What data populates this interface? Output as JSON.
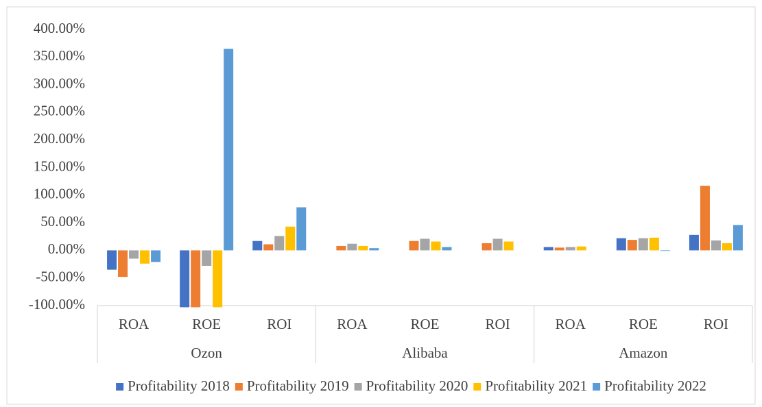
{
  "chart_data": {
    "type": "bar",
    "categories": [
      "ROA",
      "ROE",
      "ROI",
      "ROA",
      "ROE",
      "ROI",
      "ROA",
      "ROE",
      "ROI"
    ],
    "groups": [
      "Ozon",
      "Alibaba",
      "Amazon"
    ],
    "series": [
      {
        "name": "Profitability 2018",
        "color": "#4472c4",
        "values": [
          -35,
          -103,
          17,
          0,
          0,
          0,
          6,
          22,
          28
        ]
      },
      {
        "name": "Profitability 2019",
        "color": "#ed7d31",
        "values": [
          -48,
          -103,
          11,
          8,
          17,
          13,
          5,
          19,
          117
        ]
      },
      {
        "name": "Profitability 2020",
        "color": "#a5a5a5",
        "values": [
          -15,
          -28,
          26,
          12,
          21,
          21,
          6,
          22,
          18
        ]
      },
      {
        "name": "Profitability 2021",
        "color": "#ffc000",
        "values": [
          -24,
          -103,
          43,
          8,
          16,
          16,
          7,
          23,
          13
        ]
      },
      {
        "name": "Profitability 2022",
        "color": "#5b9bd5",
        "values": [
          -21,
          365,
          78,
          4,
          6,
          0,
          0,
          -1,
          46
        ]
      }
    ],
    "ylim": [
      -100,
      400
    ],
    "yticks": [
      {
        "value": -100,
        "label": "-100.00%"
      },
      {
        "value": -50,
        "label": "-50.00%"
      },
      {
        "value": 0,
        "label": "0.00%"
      },
      {
        "value": 50,
        "label": "50.00%"
      },
      {
        "value": 100,
        "label": "100.00%"
      },
      {
        "value": 150,
        "label": "150.00%"
      },
      {
        "value": 200,
        "label": "200.00%"
      },
      {
        "value": 250,
        "label": "250.00%"
      },
      {
        "value": 300,
        "label": "300.00%"
      },
      {
        "value": 350,
        "label": "350.00%"
      },
      {
        "value": 400,
        "label": "400.00%"
      }
    ],
    "grid": false,
    "legend": "bottom"
  }
}
